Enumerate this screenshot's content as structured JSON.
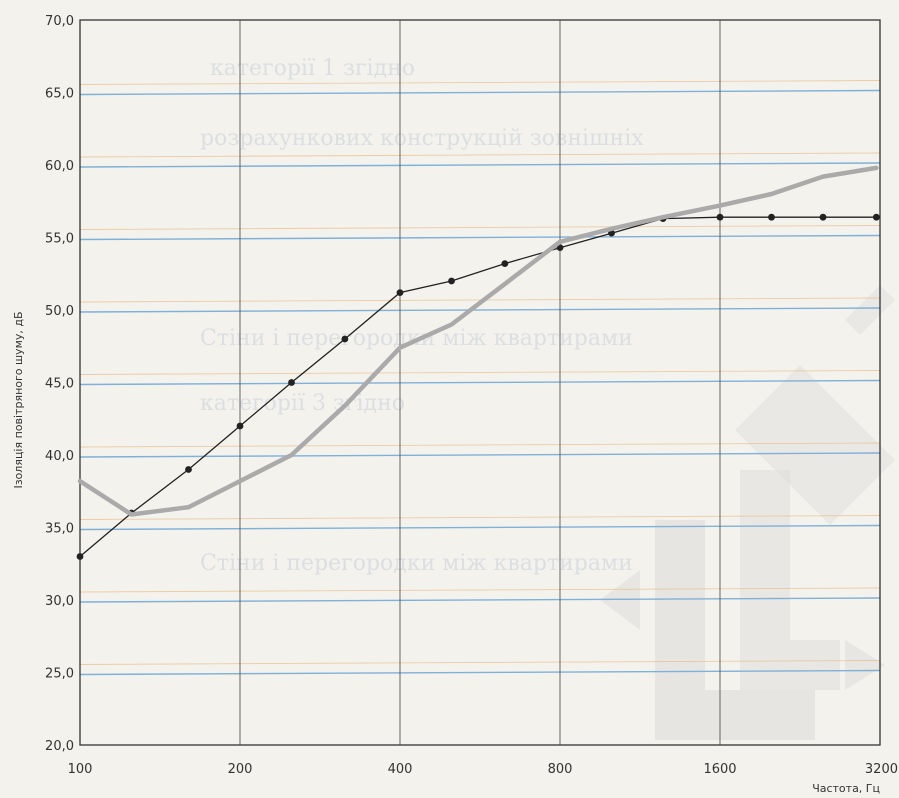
{
  "chart_data": {
    "type": "line",
    "title": "",
    "xlabel": "Частота, Гц",
    "ylabel": "Ізоляція повітряного шуму, дБ",
    "x_scale": "log",
    "xlim": [
      100,
      3200
    ],
    "ylim": [
      20,
      70
    ],
    "x_ticks": [
      100,
      200,
      400,
      800,
      1600,
      3200
    ],
    "x_tick_labels": [
      "100",
      "200",
      "400",
      "800",
      "1600",
      "3200"
    ],
    "y_ticks": [
      20,
      25,
      30,
      35,
      40,
      45,
      50,
      55,
      60,
      65,
      70
    ],
    "y_tick_labels": [
      "20,0",
      "25,0",
      "30,0",
      "35,0",
      "40,0",
      "45,0",
      "50,0",
      "55,0",
      "60,0",
      "65,0",
      "70,0"
    ],
    "grid": true,
    "colors": {
      "series_black": "#222222",
      "series_grey": "#aaaaaa",
      "grid_blue": "#7fb0d8",
      "grid_orange": "#e8b27a",
      "axis": "#333333"
    },
    "series": [
      {
        "style": "black-dotted-markers",
        "x": [
          100,
          125,
          160,
          200,
          250,
          315,
          400,
          500,
          630,
          800,
          1000,
          1250,
          1600,
          2000,
          2500,
          3150
        ],
        "y": [
          33,
          36,
          39,
          42,
          45,
          48,
          51.2,
          52,
          53.2,
          54.3,
          55.3,
          56.3,
          56.4,
          56.4,
          56.4,
          56.4
        ]
      },
      {
        "style": "grey-thick",
        "x": [
          100,
          125,
          160,
          200,
          250,
          315,
          400,
          500,
          630,
          800,
          1000,
          1250,
          1600,
          2000,
          2500,
          3150
        ],
        "y": [
          38.2,
          35.9,
          36.4,
          38.2,
          40.0,
          43.4,
          47.4,
          49.0,
          51.8,
          54.7,
          55.6,
          56.4,
          57.2,
          58.0,
          59.2,
          59.8
        ]
      }
    ]
  }
}
